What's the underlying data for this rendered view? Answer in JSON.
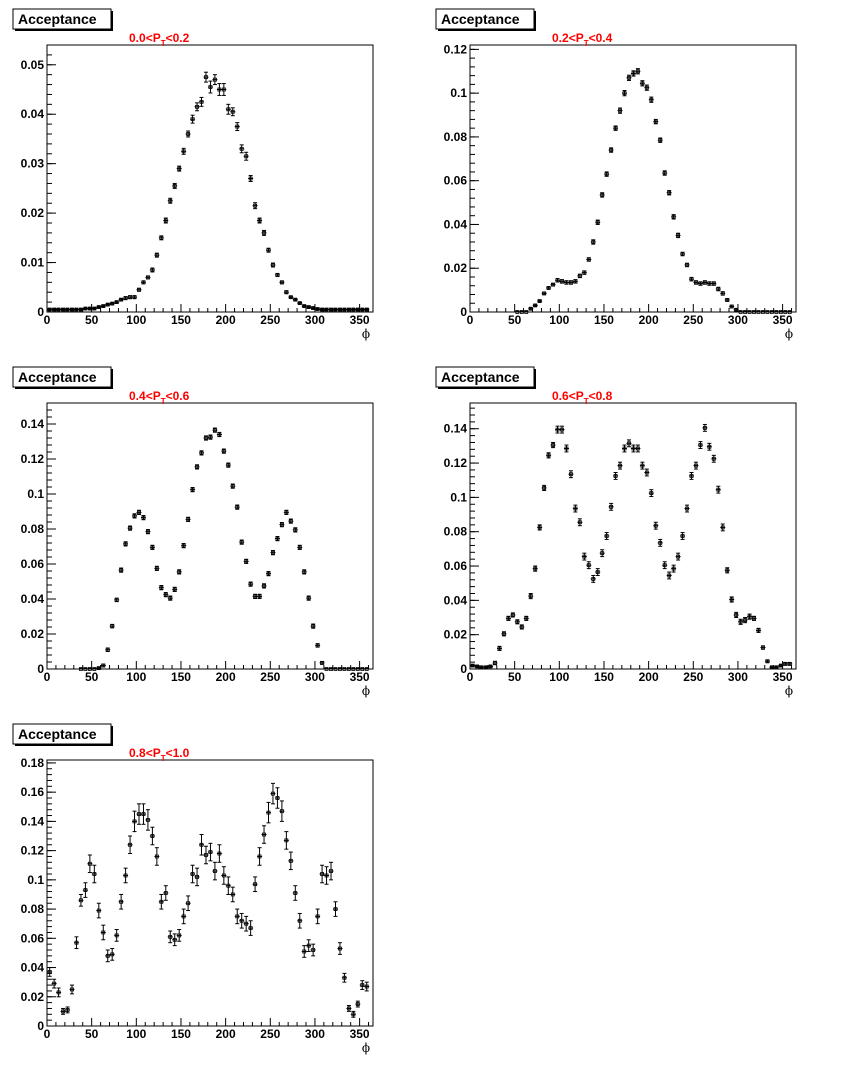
{
  "chart_data": [
    {
      "type": "scatter",
      "title": "Acceptance",
      "range": {
        "lo": "0.0",
        "hi": "0.2"
      },
      "xlabel": "ϕ",
      "xlim": [
        0,
        365
      ],
      "ylim": [
        0,
        0.054
      ],
      "xticks": [
        0,
        50,
        100,
        150,
        200,
        250,
        300,
        350
      ],
      "yticks": [
        0,
        0.01,
        0.02,
        0.03,
        0.04,
        0.05
      ],
      "ytick_labels": [
        "0",
        "0.01",
        "0.02",
        "0.03",
        "0.04",
        "0.05"
      ],
      "x": [
        3,
        8,
        13,
        18,
        23,
        28,
        33,
        38,
        43,
        48,
        53,
        58,
        63,
        68,
        73,
        78,
        83,
        88,
        93,
        98,
        103,
        108,
        113,
        118,
        123,
        128,
        133,
        138,
        143,
        148,
        153,
        158,
        163,
        168,
        173,
        178,
        183,
        188,
        193,
        198,
        203,
        208,
        213,
        218,
        223,
        228,
        233,
        238,
        243,
        248,
        253,
        258,
        263,
        268,
        273,
        278,
        283,
        288,
        293,
        298,
        303,
        308,
        313,
        318,
        323,
        328,
        333,
        338,
        343,
        348,
        353,
        358
      ],
      "y": [
        0.0005,
        0.0005,
        0.0005,
        0.0005,
        0.0005,
        0.0005,
        0.0005,
        0.0005,
        0.0007,
        0.0007,
        0.0007,
        0.001,
        0.0012,
        0.0015,
        0.0017,
        0.002,
        0.0025,
        0.0028,
        0.003,
        0.003,
        0.0045,
        0.006,
        0.007,
        0.0085,
        0.0115,
        0.015,
        0.0185,
        0.0225,
        0.0255,
        0.029,
        0.0325,
        0.036,
        0.039,
        0.0415,
        0.0425,
        0.0475,
        0.0455,
        0.047,
        0.045,
        0.045,
        0.041,
        0.0405,
        0.0375,
        0.033,
        0.0315,
        0.027,
        0.0215,
        0.0185,
        0.016,
        0.0125,
        0.0095,
        0.0075,
        0.006,
        0.004,
        0.003,
        0.0025,
        0.0018,
        0.0012,
        0.001,
        0.0008,
        0.0006,
        0.0005,
        0.0005,
        0.0005,
        0.0005,
        0.0005,
        0.0005,
        0.0005,
        0.0005,
        0.0005,
        0.0005,
        0.0005
      ],
      "yerr": [
        0.0002,
        0.0002,
        0.0002,
        0.0002,
        0.0002,
        0.0002,
        0.0002,
        0.0002,
        0.0002,
        0.0002,
        0.0002,
        0.0002,
        0.0002,
        0.0002,
        0.0002,
        0.0002,
        0.0002,
        0.0003,
        0.0003,
        0.0003,
        0.0003,
        0.0003,
        0.0003,
        0.0004,
        0.0004,
        0.0004,
        0.0005,
        0.0005,
        0.0005,
        0.0005,
        0.0006,
        0.0006,
        0.0008,
        0.0008,
        0.0009,
        0.001,
        0.0012,
        0.001,
        0.0012,
        0.0012,
        0.001,
        0.0008,
        0.0008,
        0.0008,
        0.0008,
        0.0006,
        0.0006,
        0.0005,
        0.0005,
        0.0004,
        0.0004,
        0.0003,
        0.0003,
        0.0003,
        0.0002,
        0.0002,
        0.0002,
        0.0002,
        0.0002,
        0.0002,
        0.0002,
        0.0002,
        0.0002,
        0.0002,
        0.0002,
        0.0002,
        0.0002,
        0.0002,
        0.0002,
        0.0002,
        0.0002,
        0.0002
      ]
    },
    {
      "type": "scatter",
      "title": "Acceptance",
      "range": {
        "lo": "0.2",
        "hi": "0.4"
      },
      "xlabel": "ϕ",
      "xlim": [
        0,
        365
      ],
      "ylim": [
        0,
        0.122
      ],
      "xticks": [
        0,
        50,
        100,
        150,
        200,
        250,
        300,
        350
      ],
      "yticks": [
        0,
        0.02,
        0.04,
        0.06,
        0.08,
        0.1,
        0.12
      ],
      "ytick_labels": [
        "0",
        "0.02",
        "0.04",
        "0.06",
        "0.08",
        "0.1",
        "0.12"
      ],
      "x": [
        53,
        58,
        63,
        68,
        73,
        78,
        83,
        88,
        93,
        98,
        103,
        108,
        113,
        118,
        123,
        128,
        133,
        138,
        143,
        148,
        153,
        158,
        163,
        168,
        173,
        178,
        183,
        188,
        193,
        198,
        203,
        208,
        213,
        218,
        223,
        228,
        233,
        238,
        243,
        248,
        253,
        258,
        263,
        268,
        273,
        278,
        283,
        288,
        293,
        298,
        303,
        308,
        313,
        318,
        323,
        328,
        333,
        338,
        343,
        348,
        353,
        358
      ],
      "y": [
        0,
        0,
        0,
        0.0015,
        0.003,
        0.005,
        0.0085,
        0.011,
        0.0125,
        0.0145,
        0.014,
        0.0135,
        0.0135,
        0.014,
        0.0165,
        0.018,
        0.024,
        0.032,
        0.041,
        0.0535,
        0.063,
        0.074,
        0.084,
        0.092,
        0.1,
        0.107,
        0.109,
        0.11,
        0.1045,
        0.1025,
        0.097,
        0.087,
        0.0785,
        0.0635,
        0.0545,
        0.0435,
        0.035,
        0.0265,
        0.0215,
        0.015,
        0.0135,
        0.013,
        0.0135,
        0.013,
        0.013,
        0.0105,
        0.0085,
        0.0055,
        0.0025,
        0.001,
        0,
        0,
        0,
        0,
        0,
        0,
        0,
        0,
        0,
        0,
        0,
        0
      ],
      "yerr": [
        0.0003,
        0.0003,
        0.0003,
        0.0005,
        0.0005,
        0.0005,
        0.0006,
        0.0006,
        0.0006,
        0.0008,
        0.0008,
        0.0008,
        0.0008,
        0.0008,
        0.0008,
        0.0008,
        0.0008,
        0.001,
        0.001,
        0.001,
        0.001,
        0.001,
        0.001,
        0.0012,
        0.0012,
        0.0012,
        0.0012,
        0.0012,
        0.0012,
        0.0012,
        0.0012,
        0.001,
        0.001,
        0.001,
        0.001,
        0.001,
        0.001,
        0.0008,
        0.0008,
        0.0008,
        0.0008,
        0.0008,
        0.0008,
        0.0008,
        0.0008,
        0.0008,
        0.0008,
        0.0006,
        0.0006,
        0.0005,
        0.0003,
        0.0003,
        0.0003,
        0.0003,
        0.0003,
        0.0003,
        0.0003,
        0.0003,
        0.0003,
        0.0003,
        0.0003,
        0.0003
      ]
    },
    {
      "type": "scatter",
      "title": "Acceptance",
      "range": {
        "lo": "0.4",
        "hi": "0.6"
      },
      "xlabel": "ϕ",
      "xlim": [
        0,
        365
      ],
      "ylim": [
        0,
        0.152
      ],
      "xticks": [
        0,
        50,
        100,
        150,
        200,
        250,
        300,
        350
      ],
      "yticks": [
        0,
        0.02,
        0.04,
        0.06,
        0.08,
        0.1,
        0.12,
        0.14
      ],
      "ytick_labels": [
        "0",
        "0.02",
        "0.04",
        "0.06",
        "0.08",
        "0.1",
        "0.12",
        "0.14"
      ],
      "x": [
        38,
        43,
        48,
        53,
        58,
        63,
        68,
        73,
        78,
        83,
        88,
        93,
        98,
        103,
        108,
        113,
        118,
        123,
        128,
        133,
        138,
        143,
        148,
        153,
        158,
        163,
        168,
        173,
        178,
        183,
        188,
        193,
        198,
        203,
        208,
        213,
        218,
        223,
        228,
        233,
        238,
        243,
        248,
        253,
        258,
        263,
        268,
        273,
        278,
        283,
        288,
        293,
        298,
        303,
        308,
        313,
        318,
        323,
        328,
        333,
        338,
        343,
        348,
        353,
        358
      ],
      "y": [
        0,
        0,
        0,
        0,
        0.0005,
        0.002,
        0.011,
        0.0245,
        0.0395,
        0.0565,
        0.0715,
        0.0805,
        0.0875,
        0.0895,
        0.0865,
        0.0785,
        0.0695,
        0.0575,
        0.0465,
        0.0425,
        0.0405,
        0.0455,
        0.0555,
        0.0705,
        0.0855,
        0.1025,
        0.1155,
        0.1235,
        0.132,
        0.1325,
        0.1365,
        0.134,
        0.1245,
        0.1165,
        0.1045,
        0.0925,
        0.0725,
        0.0615,
        0.0485,
        0.0415,
        0.0415,
        0.0475,
        0.0545,
        0.0665,
        0.0745,
        0.0825,
        0.0895,
        0.0845,
        0.0795,
        0.0695,
        0.0555,
        0.0405,
        0.0245,
        0.0135,
        0.0035,
        0,
        0,
        0,
        0,
        0,
        0,
        0,
        0,
        0,
        0
      ],
      "yerr": [
        0.0003,
        0.0003,
        0.0003,
        0.0003,
        0.0005,
        0.0008,
        0.001,
        0.001,
        0.001,
        0.0012,
        0.0012,
        0.0012,
        0.0012,
        0.0012,
        0.0012,
        0.0012,
        0.0012,
        0.0012,
        0.0012,
        0.0012,
        0.0012,
        0.0012,
        0.0012,
        0.0012,
        0.0012,
        0.0012,
        0.0012,
        0.0012,
        0.0012,
        0.0012,
        0.0012,
        0.0012,
        0.0012,
        0.0012,
        0.0012,
        0.0012,
        0.0012,
        0.0012,
        0.0012,
        0.0012,
        0.0012,
        0.0012,
        0.0012,
        0.0012,
        0.0012,
        0.0012,
        0.0012,
        0.0012,
        0.0012,
        0.0012,
        0.0012,
        0.0012,
        0.0012,
        0.001,
        0.0008,
        0.0003,
        0.0003,
        0.0003,
        0.0003,
        0.0003,
        0.0003,
        0.0003,
        0.0003,
        0.0003,
        0.0003
      ]
    },
    {
      "type": "scatter",
      "title": "Acceptance",
      "range": {
        "lo": "0.6",
        "hi": "0.8"
      },
      "xlabel": "ϕ",
      "xlim": [
        0,
        365
      ],
      "ylim": [
        0,
        0.155
      ],
      "xticks": [
        0,
        50,
        100,
        150,
        200,
        250,
        300,
        350
      ],
      "yticks": [
        0,
        0.02,
        0.04,
        0.06,
        0.08,
        0.1,
        0.12,
        0.14
      ],
      "ytick_labels": [
        "0",
        "0.02",
        "0.04",
        "0.06",
        "0.08",
        "0.1",
        "0.12",
        "0.14"
      ],
      "x": [
        3,
        8,
        13,
        18,
        23,
        28,
        33,
        38,
        43,
        48,
        53,
        58,
        63,
        68,
        73,
        78,
        83,
        88,
        93,
        98,
        103,
        108,
        113,
        118,
        123,
        128,
        133,
        138,
        143,
        148,
        153,
        158,
        163,
        168,
        173,
        178,
        183,
        188,
        193,
        198,
        203,
        208,
        213,
        218,
        223,
        228,
        233,
        238,
        243,
        248,
        253,
        258,
        263,
        268,
        273,
        278,
        283,
        288,
        293,
        298,
        303,
        308,
        313,
        318,
        323,
        328,
        333,
        338,
        343,
        348,
        353,
        358
      ],
      "y": [
        0.002,
        0.0015,
        0.001,
        0.001,
        0.0015,
        0.0035,
        0.012,
        0.0205,
        0.0295,
        0.0315,
        0.0275,
        0.0245,
        0.0295,
        0.0425,
        0.0585,
        0.0825,
        0.1055,
        0.1245,
        0.1305,
        0.1395,
        0.1395,
        0.1285,
        0.1135,
        0.0935,
        0.0855,
        0.0655,
        0.0605,
        0.0525,
        0.0565,
        0.0675,
        0.0775,
        0.0945,
        0.1125,
        0.1185,
        0.1285,
        0.1315,
        0.1285,
        0.1285,
        0.1185,
        0.1145,
        0.1025,
        0.0835,
        0.0735,
        0.0605,
        0.0545,
        0.0585,
        0.0655,
        0.0775,
        0.0935,
        0.1125,
        0.1185,
        0.1305,
        0.1405,
        0.1295,
        0.1225,
        0.1045,
        0.0825,
        0.0575,
        0.0405,
        0.0315,
        0.0275,
        0.0285,
        0.0305,
        0.0295,
        0.0225,
        0.0125,
        0.0045,
        0.001,
        0.001,
        0.002,
        0.003,
        0.003
      ],
      "yerr": [
        0.0005,
        0.0005,
        0.0005,
        0.0005,
        0.0005,
        0.001,
        0.0012,
        0.0012,
        0.0012,
        0.0012,
        0.0012,
        0.0012,
        0.0012,
        0.0015,
        0.0015,
        0.0015,
        0.0015,
        0.0015,
        0.0015,
        0.002,
        0.002,
        0.002,
        0.002,
        0.002,
        0.002,
        0.002,
        0.002,
        0.002,
        0.002,
        0.002,
        0.002,
        0.002,
        0.002,
        0.002,
        0.002,
        0.002,
        0.002,
        0.002,
        0.002,
        0.002,
        0.002,
        0.002,
        0.002,
        0.002,
        0.002,
        0.002,
        0.002,
        0.002,
        0.002,
        0.002,
        0.002,
        0.002,
        0.002,
        0.002,
        0.002,
        0.002,
        0.002,
        0.0015,
        0.0015,
        0.0015,
        0.0015,
        0.0015,
        0.0015,
        0.0012,
        0.0012,
        0.001,
        0.0008,
        0.0005,
        0.0005,
        0.0005,
        0.0008,
        0.0008
      ]
    },
    {
      "type": "scatter",
      "title": "Acceptance",
      "range": {
        "lo": "0.8",
        "hi": "1.0"
      },
      "xlabel": "ϕ",
      "xlim": [
        0,
        365
      ],
      "ylim": [
        0,
        0.182
      ],
      "xticks": [
        0,
        50,
        100,
        150,
        200,
        250,
        300,
        350
      ],
      "yticks": [
        0,
        0.02,
        0.04,
        0.06,
        0.08,
        0.1,
        0.12,
        0.14,
        0.16,
        0.18
      ],
      "ytick_labels": [
        "0",
        "0.02",
        "0.04",
        "0.06",
        "0.08",
        "0.1",
        "0.12",
        "0.14",
        "0.16",
        "0.18"
      ],
      "x": [
        3,
        8,
        13,
        18,
        23,
        28,
        33,
        38,
        43,
        48,
        53,
        58,
        63,
        68,
        73,
        78,
        83,
        88,
        93,
        98,
        103,
        108,
        113,
        118,
        123,
        128,
        133,
        138,
        143,
        148,
        153,
        158,
        163,
        168,
        173,
        178,
        183,
        188,
        193,
        198,
        203,
        208,
        213,
        218,
        223,
        228,
        233,
        238,
        243,
        248,
        253,
        258,
        263,
        268,
        273,
        278,
        283,
        288,
        293,
        298,
        303,
        308,
        313,
        318,
        323,
        328,
        333,
        338,
        343,
        348,
        353,
        358
      ],
      "y": [
        0.037,
        0.029,
        0.023,
        0.01,
        0.011,
        0.025,
        0.057,
        0.086,
        0.093,
        0.111,
        0.104,
        0.079,
        0.064,
        0.048,
        0.049,
        0.062,
        0.085,
        0.103,
        0.124,
        0.14,
        0.145,
        0.145,
        0.141,
        0.13,
        0.116,
        0.085,
        0.091,
        0.061,
        0.059,
        0.062,
        0.075,
        0.084,
        0.104,
        0.102,
        0.124,
        0.117,
        0.119,
        0.106,
        0.118,
        0.103,
        0.096,
        0.09,
        0.075,
        0.072,
        0.07,
        0.067,
        0.097,
        0.116,
        0.131,
        0.146,
        0.159,
        0.156,
        0.147,
        0.127,
        0.113,
        0.091,
        0.072,
        0.051,
        0.055,
        0.052,
        0.075,
        0.104,
        0.103,
        0.106,
        0.08,
        0.053,
        0.033,
        0.012,
        0.008,
        0.015,
        0.028,
        0.027
      ],
      "yerr": [
        0.003,
        0.003,
        0.003,
        0.002,
        0.002,
        0.003,
        0.004,
        0.004,
        0.005,
        0.006,
        0.006,
        0.005,
        0.005,
        0.004,
        0.004,
        0.004,
        0.005,
        0.005,
        0.006,
        0.007,
        0.007,
        0.007,
        0.007,
        0.006,
        0.006,
        0.005,
        0.005,
        0.004,
        0.004,
        0.004,
        0.005,
        0.005,
        0.006,
        0.006,
        0.007,
        0.006,
        0.006,
        0.006,
        0.006,
        0.006,
        0.006,
        0.005,
        0.005,
        0.005,
        0.005,
        0.005,
        0.005,
        0.006,
        0.006,
        0.007,
        0.007,
        0.007,
        0.007,
        0.006,
        0.006,
        0.005,
        0.005,
        0.004,
        0.004,
        0.004,
        0.005,
        0.006,
        0.006,
        0.006,
        0.005,
        0.004,
        0.003,
        0.002,
        0.002,
        0.002,
        0.003,
        0.003
      ]
    }
  ]
}
